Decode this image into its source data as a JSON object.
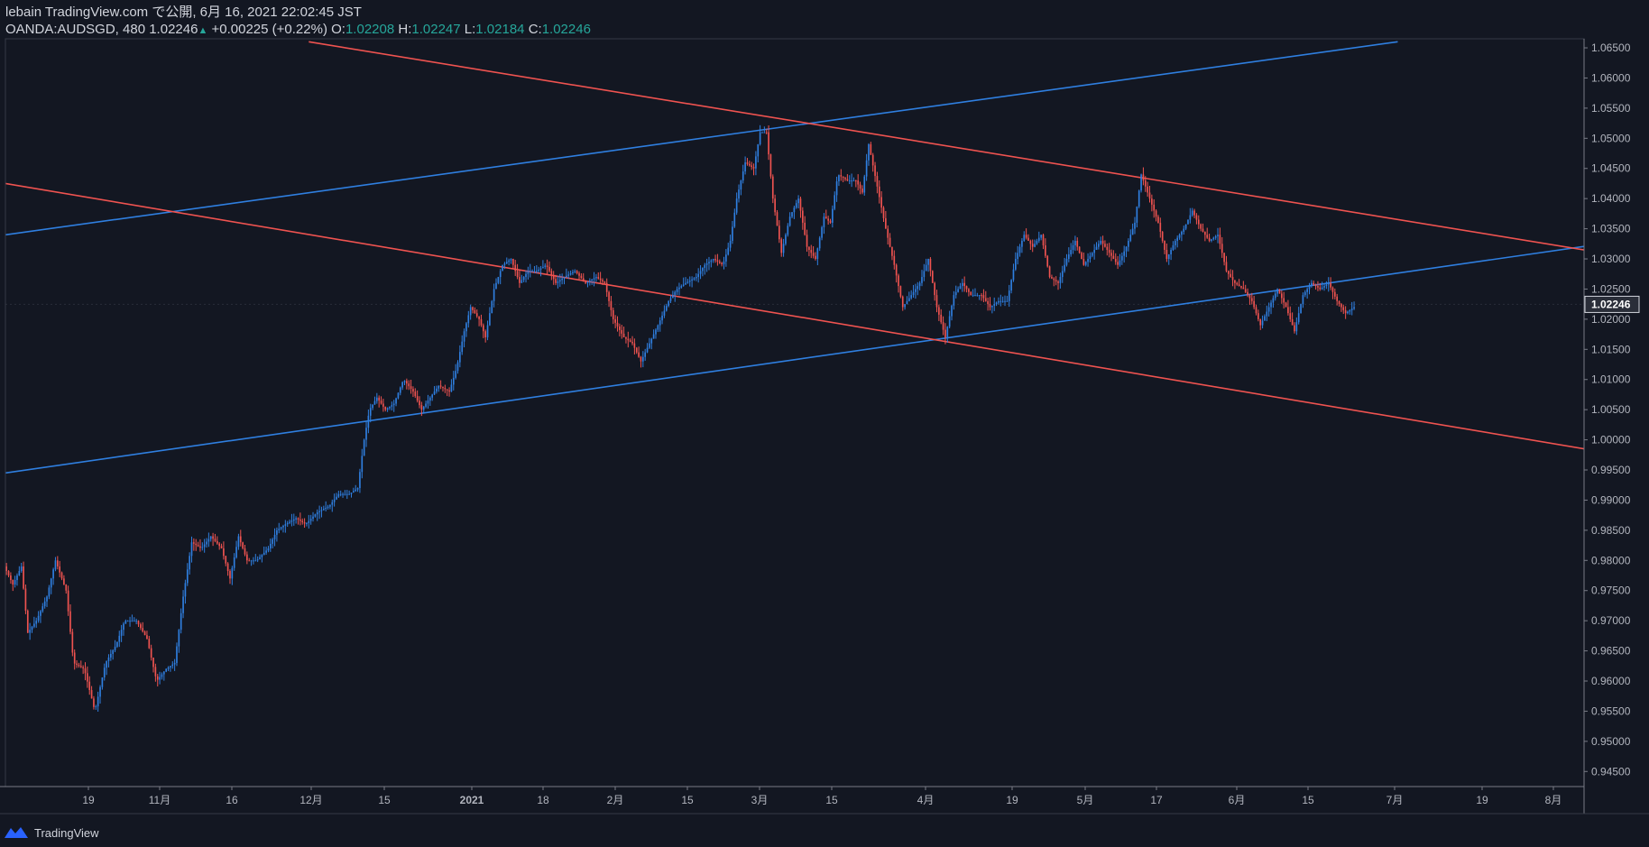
{
  "header": {
    "line1": "lebain TradingView.com で公開, 6月 16, 2021 22:02:45 JST",
    "symbol": "OANDA:AUDSGD, 480",
    "last": "1.02246",
    "change_arrow": "▲",
    "change": "+0.00225 (+0.22%)",
    "open_label": "O:",
    "open": "1.02208",
    "high_label": "H:",
    "high": "1.02247",
    "low_label": "L:",
    "low": "1.02184",
    "close_label": "C:",
    "close": "1.02246"
  },
  "footer": {
    "brand": "TradingView"
  },
  "colors": {
    "bg": "#131722",
    "up": "#2f7fe0",
    "down": "#ef5350",
    "blue_line": "#2f7fe0",
    "red_line": "#ef5350",
    "axis_text": "#b2b5be",
    "border": "#787b86"
  },
  "chart_data": {
    "type": "candlestick",
    "title": "OANDA:AUDSGD, 480",
    "ylim": [
      0.9425,
      1.0665
    ],
    "y_ticks": [
      "1.06500",
      "1.06000",
      "1.05500",
      "1.05000",
      "1.04500",
      "1.04000",
      "1.03500",
      "1.03000",
      "1.02500",
      "1.02000",
      "1.01500",
      "1.01000",
      "1.00500",
      "1.00000",
      "0.99500",
      "0.99000",
      "0.98500",
      "0.98000",
      "0.97500",
      "0.97000",
      "0.96500",
      "0.96000",
      "0.95500",
      "0.95000",
      "0.94500"
    ],
    "x_ticks": [
      "19",
      "11月",
      "16",
      "12月",
      "15",
      "2021",
      "18",
      "2月",
      "15",
      "3月",
      "15",
      "4月",
      "19",
      "5月",
      "17",
      "6月",
      "15",
      "7月",
      "19",
      "8月"
    ],
    "last_price_label": "1.02246",
    "price_path": [
      [
        0,
        0.979
      ],
      [
        0.8,
        0.976
      ],
      [
        1.6,
        0.979
      ],
      [
        2.2,
        0.968
      ],
      [
        3,
        0.97
      ],
      [
        4,
        0.974
      ],
      [
        4.8,
        0.98
      ],
      [
        5.8,
        0.975
      ],
      [
        6.5,
        0.963
      ],
      [
        7.5,
        0.962
      ],
      [
        8.5,
        0.955
      ],
      [
        9.5,
        0.963
      ],
      [
        10.5,
        0.966
      ],
      [
        11.3,
        0.97
      ],
      [
        12.4,
        0.97
      ],
      [
        13.4,
        0.967
      ],
      [
        14.3,
        0.96
      ],
      [
        15.2,
        0.962
      ],
      [
        16,
        0.963
      ],
      [
        16.8,
        0.974
      ],
      [
        17.6,
        0.983
      ],
      [
        18.5,
        0.982
      ],
      [
        19.4,
        0.984
      ],
      [
        20.4,
        0.982
      ],
      [
        21.2,
        0.977
      ],
      [
        22,
        0.984
      ],
      [
        22.8,
        0.98
      ],
      [
        23.7,
        0.98
      ],
      [
        24.8,
        0.982
      ],
      [
        25.6,
        0.985
      ],
      [
        26.4,
        0.986
      ],
      [
        27.4,
        0.987
      ],
      [
        28.3,
        0.986
      ],
      [
        29.4,
        0.988
      ],
      [
        30.5,
        0.989
      ],
      [
        31.4,
        0.991
      ],
      [
        32.4,
        0.991
      ],
      [
        33.2,
        0.992
      ],
      [
        33.8,
        1.0
      ],
      [
        34.3,
        1.005
      ],
      [
        35,
        1.007
      ],
      [
        35.8,
        1.005
      ],
      [
        36.6,
        1.006
      ],
      [
        37.5,
        1.01
      ],
      [
        38.4,
        1.008
      ],
      [
        39.2,
        1.005
      ],
      [
        40,
        1.007
      ],
      [
        40.8,
        1.009
      ],
      [
        41.8,
        1.008
      ],
      [
        42.5,
        1.012
      ],
      [
        43.2,
        1.018
      ],
      [
        43.8,
        1.022
      ],
      [
        44.6,
        1.02
      ],
      [
        45.2,
        1.017
      ],
      [
        46,
        1.025
      ],
      [
        46.8,
        1.029
      ],
      [
        47.6,
        1.03
      ],
      [
        48.4,
        1.026
      ],
      [
        49.2,
        1.028
      ],
      [
        50,
        1.028
      ],
      [
        50.9,
        1.029
      ],
      [
        51.8,
        1.026
      ],
      [
        52.6,
        1.027
      ],
      [
        53.6,
        1.028
      ],
      [
        54.6,
        1.026
      ],
      [
        55.6,
        1.027
      ],
      [
        56.4,
        1.026
      ],
      [
        57.2,
        1.02
      ],
      [
        58.2,
        1.017
      ],
      [
        59,
        1.016
      ],
      [
        59.8,
        1.013
      ],
      [
        60.6,
        1.016
      ],
      [
        61.4,
        1.019
      ],
      [
        62.4,
        1.023
      ],
      [
        63.2,
        1.025
      ],
      [
        64,
        1.026
      ],
      [
        65,
        1.027
      ],
      [
        65.8,
        1.029
      ],
      [
        66.6,
        1.03
      ],
      [
        67.5,
        1.029
      ],
      [
        68.2,
        1.033
      ],
      [
        68.8,
        1.04
      ],
      [
        69.6,
        1.046
      ],
      [
        70.4,
        1.045
      ],
      [
        71,
        1.051
      ],
      [
        71.6,
        1.051
      ],
      [
        72.2,
        1.04
      ],
      [
        73,
        1.031
      ],
      [
        73.8,
        1.037
      ],
      [
        74.6,
        1.04
      ],
      [
        75.4,
        1.032
      ],
      [
        76.2,
        1.03
      ],
      [
        77,
        1.037
      ],
      [
        77.6,
        1.036
      ],
      [
        78.3,
        1.044
      ],
      [
        79.2,
        1.043
      ],
      [
        80,
        1.043
      ],
      [
        80.6,
        1.041
      ],
      [
        81.2,
        1.049
      ],
      [
        82,
        1.042
      ],
      [
        82.8,
        1.035
      ],
      [
        83.6,
        1.029
      ],
      [
        84.4,
        1.022
      ],
      [
        85.2,
        1.024
      ],
      [
        86,
        1.026
      ],
      [
        86.8,
        1.03
      ],
      [
        87.6,
        1.022
      ],
      [
        88.4,
        1.017
      ],
      [
        89.2,
        1.024
      ],
      [
        90,
        1.026
      ],
      [
        90.8,
        1.024
      ],
      [
        91.8,
        1.024
      ],
      [
        92.6,
        1.022
      ],
      [
        93.4,
        1.023
      ],
      [
        94.2,
        1.023
      ],
      [
        95,
        1.03
      ],
      [
        95.8,
        1.034
      ],
      [
        96.6,
        1.032
      ],
      [
        97.4,
        1.034
      ],
      [
        98.2,
        1.027
      ],
      [
        99,
        1.026
      ],
      [
        99.8,
        1.03
      ],
      [
        100.6,
        1.033
      ],
      [
        101.4,
        1.029
      ],
      [
        102.2,
        1.031
      ],
      [
        103,
        1.033
      ],
      [
        103.8,
        1.031
      ],
      [
        104.6,
        1.029
      ],
      [
        105.4,
        1.032
      ],
      [
        106.2,
        1.036
      ],
      [
        106.8,
        1.044
      ],
      [
        107.6,
        1.04
      ],
      [
        108.4,
        1.036
      ],
      [
        109.2,
        1.03
      ],
      [
        110,
        1.033
      ],
      [
        110.8,
        1.035
      ],
      [
        111.6,
        1.038
      ],
      [
        112.4,
        1.035
      ],
      [
        113.2,
        1.033
      ],
      [
        114,
        1.034
      ],
      [
        114.8,
        1.028
      ],
      [
        115.6,
        1.026
      ],
      [
        116.4,
        1.025
      ],
      [
        117.2,
        1.023
      ],
      [
        118,
        1.019
      ],
      [
        118.8,
        1.022
      ],
      [
        119.6,
        1.025
      ],
      [
        120.4,
        1.022
      ],
      [
        121.2,
        1.018
      ],
      [
        122,
        1.024
      ],
      [
        122.8,
        1.026
      ],
      [
        123.6,
        1.025
      ],
      [
        124.4,
        1.026
      ],
      [
        125.2,
        1.023
      ],
      [
        126,
        1.021
      ],
      [
        126.8,
        1.022
      ]
    ],
    "trend_lines": [
      {
        "color": "blue",
        "points": [
          [
            0,
            1.034
          ],
          [
            130.8,
            1.066
          ]
        ]
      },
      {
        "color": "blue",
        "points": [
          [
            0,
            0.9945
          ],
          [
            150,
            1.0325
          ]
        ]
      },
      {
        "color": "red",
        "points": [
          [
            0,
            1.0425
          ],
          [
            150,
            0.998
          ]
        ]
      },
      {
        "color": "red",
        "points": [
          [
            28.5,
            1.066
          ],
          [
            150,
            1.031
          ]
        ]
      }
    ]
  }
}
